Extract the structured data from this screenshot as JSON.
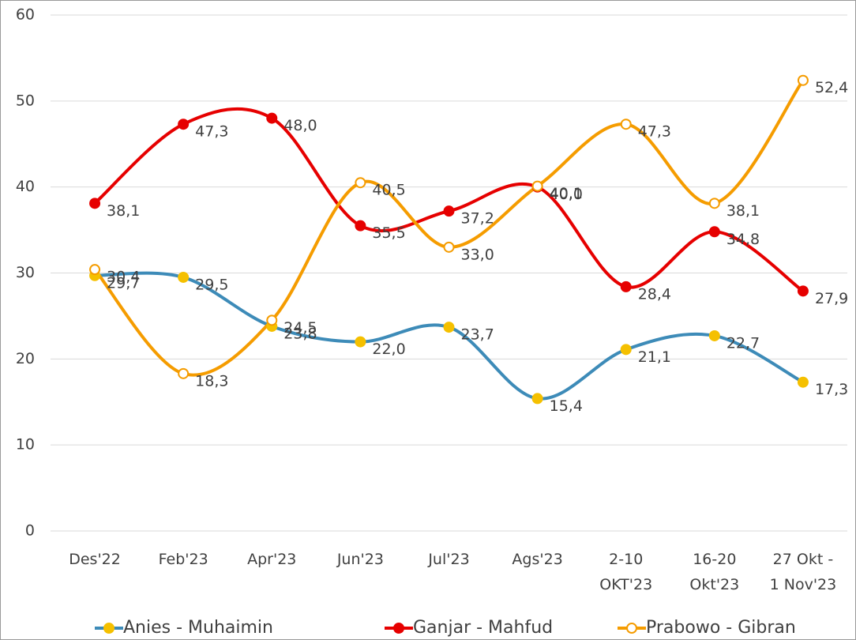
{
  "chart_data": {
    "type": "line",
    "categories": [
      "Des'22",
      "Feb'23",
      "Apr'23",
      "Jun'23",
      "Jul'23",
      "Ags'23",
      "2-10\nOKT'23",
      "16-20\nOkt'23",
      "27 Okt -\n1 Nov'23"
    ],
    "series": [
      {
        "name": "Anies - Muhaimin",
        "color": "#3d8bb8",
        "marker_color": "#f5c000",
        "values": [
          29.7,
          29.5,
          23.8,
          22.0,
          23.7,
          15.4,
          21.1,
          22.7,
          17.3
        ],
        "value_labels": [
          "29,7",
          "29,5",
          "23,8",
          "22,0",
          "23,7",
          "15,4",
          "21,1",
          "22,7",
          "17,3"
        ]
      },
      {
        "name": "Ganjar - Mahfud",
        "color": "#e60000",
        "marker_color": "#e60000",
        "values": [
          38.1,
          47.3,
          48.0,
          35.5,
          37.2,
          40.0,
          28.4,
          34.8,
          27.9
        ],
        "value_labels": [
          "38,1",
          "47,3",
          "48,0",
          "35,5",
          "37,2",
          "40,0",
          "28,4",
          "34,8",
          "27,9"
        ]
      },
      {
        "name": "Prabowo - Gibran",
        "color": "#f59c00",
        "marker_color": "#ffffff",
        "values": [
          30.4,
          18.3,
          24.5,
          40.5,
          33.0,
          40.1,
          47.3,
          38.1,
          52.4
        ],
        "value_labels": [
          "30,4",
          "18,3",
          "24,5",
          "40,5",
          "33,0",
          "40,1",
          "47,3",
          "38,1",
          "52,4"
        ]
      }
    ],
    "ylim": [
      0,
      60
    ],
    "yticks": [
      0,
      10,
      20,
      30,
      40,
      50,
      60
    ],
    "grid": true,
    "legend": "bottom"
  }
}
